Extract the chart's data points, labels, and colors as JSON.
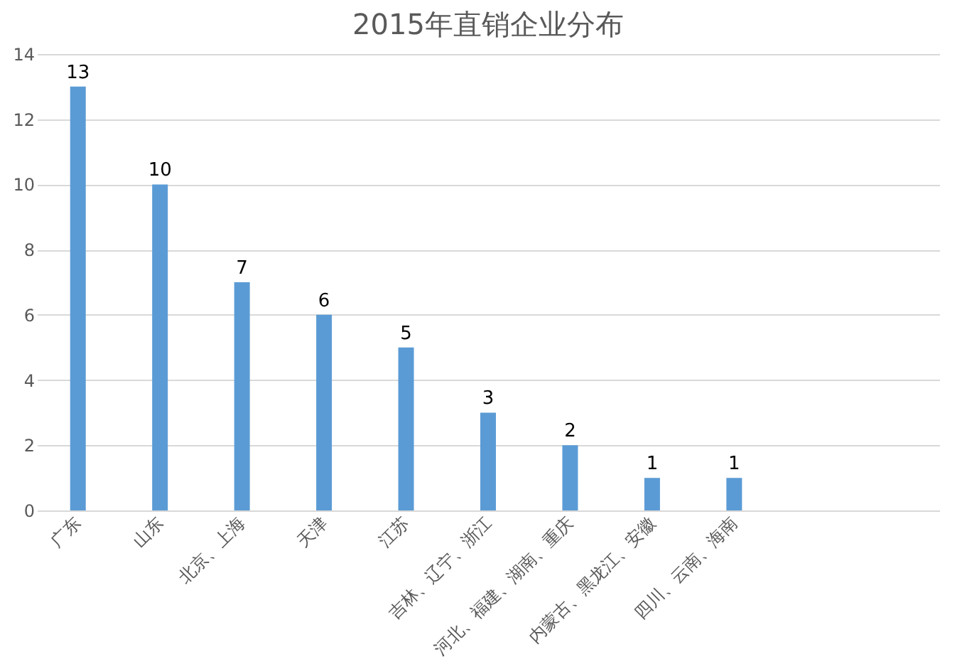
{
  "chart_data": {
    "type": "bar",
    "title": "2015年直销企业分布",
    "categories": [
      "广东",
      "山东",
      "北京、上海",
      "天津",
      "江苏",
      "吉林、辽宁、浙江",
      "河北、福建、湖南、重庆",
      "内蒙古、黑龙江、安徽",
      "四川、云南、海南",
      null,
      null
    ],
    "values": [
      13,
      10,
      7,
      6,
      5,
      3,
      2,
      1,
      1,
      null,
      null
    ],
    "color": "#5b9bd5",
    "ylim": [
      0,
      14
    ],
    "yticks": [
      0,
      2,
      4,
      6,
      8,
      10,
      12,
      14
    ],
    "grid": "y",
    "data_labels": true
  }
}
